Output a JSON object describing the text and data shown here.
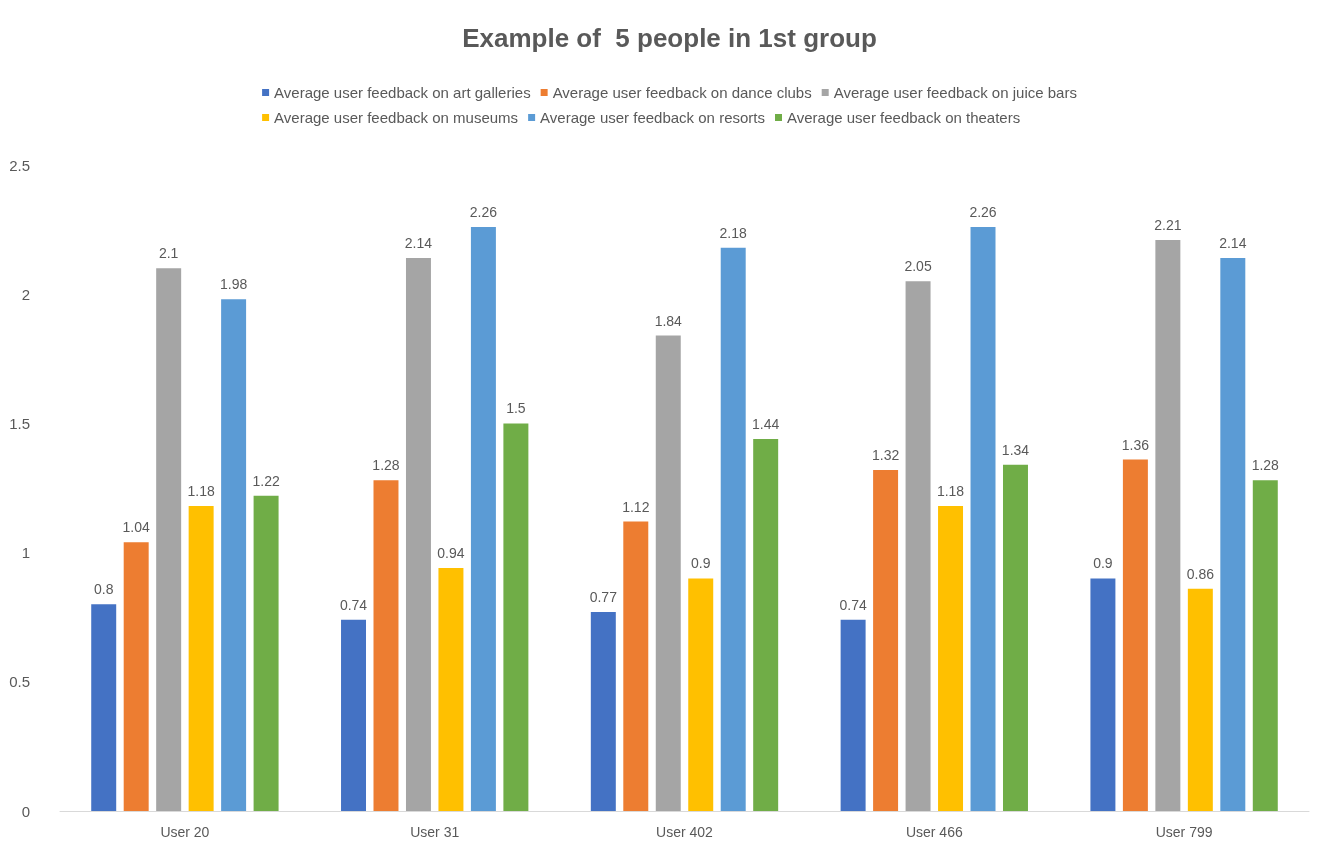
{
  "chart_data": {
    "type": "bar",
    "title": "Example of  5 people in 1st group",
    "categories": [
      "User 20",
      "User 31",
      "User 402",
      "User 466",
      "User 799"
    ],
    "series": [
      {
        "name": "Average user feedback on art galleries",
        "color": "#4472c4",
        "values": [
          0.8,
          0.74,
          0.77,
          0.74,
          0.9
        ]
      },
      {
        "name": "Average user feedback on dance clubs",
        "color": "#ed7d31",
        "values": [
          1.04,
          1.28,
          1.12,
          1.32,
          1.36
        ]
      },
      {
        "name": "Average user feedback on juice bars",
        "color": "#a5a5a5",
        "values": [
          2.1,
          2.14,
          1.84,
          2.05,
          2.21
        ]
      },
      {
        "name": "Average user feedback on museums",
        "color": "#ffc000",
        "values": [
          1.18,
          0.94,
          0.9,
          1.18,
          0.86
        ]
      },
      {
        "name": "Average user feedback on resorts",
        "color": "#5b9bd5",
        "values": [
          1.98,
          2.26,
          2.18,
          2.26,
          2.14
        ]
      },
      {
        "name": "Average user feedback on theaters",
        "color": "#70ad47",
        "values": [
          1.22,
          1.5,
          1.44,
          1.34,
          1.28
        ]
      }
    ],
    "ylim": [
      0,
      2.5
    ],
    "yticks": [
      0,
      0.5,
      1,
      1.5,
      2,
      2.5
    ],
    "grid": false,
    "legend": "top",
    "data_labels": true
  }
}
